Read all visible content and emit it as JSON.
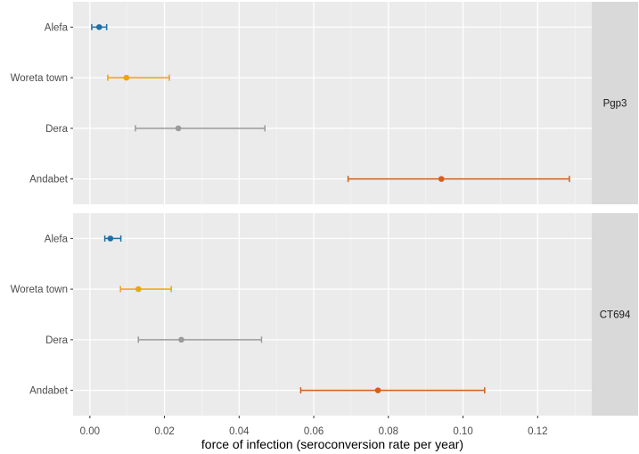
{
  "chart_data": {
    "type": "errorbar",
    "xlabel": "force of infection (seroconversion rate per year)",
    "xlim": [
      -0.0045,
      0.1345
    ],
    "x_ticks": [
      0.0,
      0.02,
      0.04,
      0.06,
      0.08,
      0.1,
      0.12
    ],
    "x_tick_labels": [
      "0.00",
      "0.02",
      "0.04",
      "0.06",
      "0.08",
      "0.10",
      "0.12"
    ],
    "grid": true,
    "categories": [
      "Alefa",
      "Woreta town",
      "Dera",
      "Andabet"
    ],
    "category_colors": {
      "Alefa": "#1f6fa8",
      "Woreta town": "#f0a30a",
      "Dera": "#9a9a9a",
      "Andabet": "#d35f1a"
    },
    "panels": [
      {
        "label": "Pgp3",
        "series": [
          {
            "category": "Alefa",
            "estimate": 0.0025,
            "lower": 0.0005,
            "upper": 0.0045
          },
          {
            "category": "Woreta town",
            "estimate": 0.0098,
            "lower": 0.0048,
            "upper": 0.0213
          },
          {
            "category": "Dera",
            "estimate": 0.0237,
            "lower": 0.0122,
            "upper": 0.0469
          },
          {
            "category": "Andabet",
            "estimate": 0.0942,
            "lower": 0.0692,
            "upper": 0.1285
          }
        ]
      },
      {
        "label": "CT694",
        "series": [
          {
            "category": "Alefa",
            "estimate": 0.0055,
            "lower": 0.004,
            "upper": 0.0083
          },
          {
            "category": "Woreta town",
            "estimate": 0.013,
            "lower": 0.0082,
            "upper": 0.0218
          },
          {
            "category": "Dera",
            "estimate": 0.0245,
            "lower": 0.013,
            "upper": 0.046
          },
          {
            "category": "Andabet",
            "estimate": 0.0772,
            "lower": 0.0565,
            "upper": 0.1058
          }
        ]
      }
    ]
  }
}
